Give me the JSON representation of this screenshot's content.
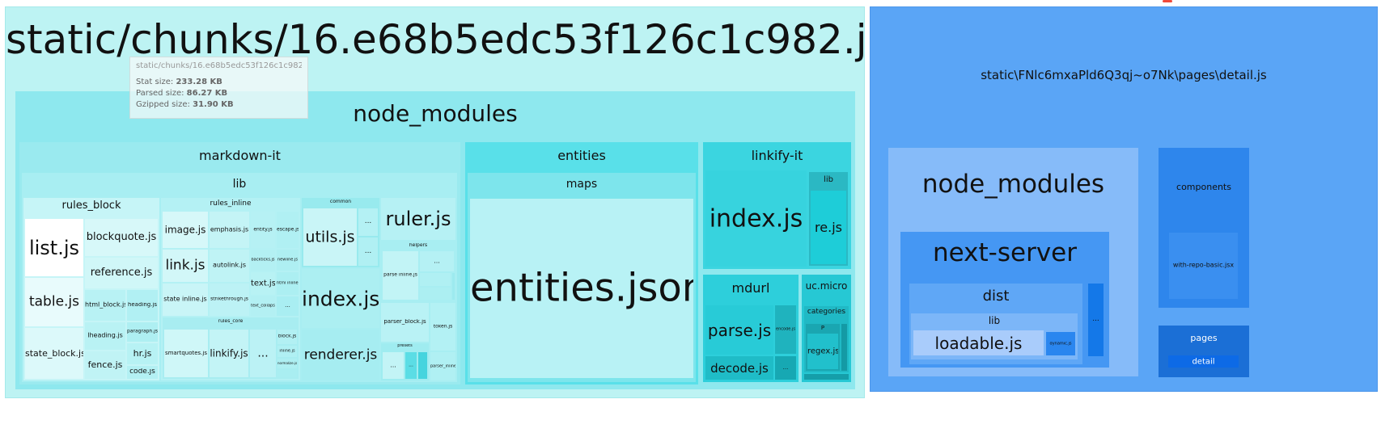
{
  "chunk_left": {
    "title": "static/chunks/16.e68b5edc53f126c1c982.js",
    "node_modules": "node_modules",
    "markdown_it": {
      "label": "markdown-it",
      "lib": "lib",
      "rules_block": {
        "label": "rules_block",
        "list": "list.js",
        "blockquote": "blockquote.js",
        "reference": "reference.js",
        "table": "table.js",
        "html_block": "html_block.js",
        "heading": "heading.js",
        "state_block": "state_block.js",
        "lheading": "lheading.js",
        "paragraph": "paragraph.js",
        "hr": "hr.js",
        "fence": "fence.js",
        "code": "code.js"
      },
      "rules_inline": {
        "label": "rules_inline",
        "image": "image.js",
        "emphasis": "emphasis.js",
        "entity": "entity.js",
        "escape": "escape.js",
        "link": "link.js",
        "autolink": "autolink.js",
        "backticks": "backticks.js",
        "newline": "newline.js",
        "state_inline": "state inline.js",
        "strikethrough": "strikethrough.js",
        "text": "text.js",
        "html_inline": "html inline.js",
        "text_collapse": "text_collapse.js",
        "rules_core": "rules_core",
        "smartquotes": "smartquotes.js",
        "linkify": "linkify.js",
        "more": "...",
        "block": "block.js",
        "inline": "inline.js",
        "normalize": "normalize.js",
        "small": "..."
      },
      "common": {
        "label": "common",
        "utils": "utils.js",
        "dots1": "...",
        "dots2": "..."
      },
      "ruler": "ruler.js",
      "helpers": {
        "label": "helpers",
        "parse_link": "parse inline.js",
        "dots": "..."
      },
      "index": "index.js",
      "parser_block": "parser_block.js",
      "token": "token.js",
      "renderer": "renderer.js",
      "presets": {
        "label": "presets",
        "dots": "...",
        "dots2": "..."
      },
      "parser_inline": "parser_inline.js"
    },
    "entities": {
      "label": "entities",
      "maps": "maps",
      "json": "entities.json"
    },
    "linkify_it": {
      "label": "linkify-it",
      "index": "index.js",
      "lib": "lib",
      "re": "re.js"
    },
    "mdurl": {
      "label": "mdurl",
      "parse": "parse.js",
      "encode": "encode.js",
      "decode": "decode.js",
      "dots": "..."
    },
    "uc_micro": {
      "label": "uc.micro",
      "categories": "categories",
      "p": "P",
      "regex": "regex.js"
    }
  },
  "tooltip": {
    "title": "static/chunks/16.e68b5edc53f126c1c982.js",
    "stat_label": "Stat size:",
    "stat_value": "233.28 KB",
    "parsed_label": "Parsed size:",
    "parsed_value": "86.27 KB",
    "gzip_label": "Gzipped size:",
    "gzip_value": "31.90 KB"
  },
  "chunk_right": {
    "title": "static\\FNlc6mxaPld6Q3qj~o7Nk\\pages\\detail.js",
    "node_modules": "node_modules",
    "next_server": "next-server",
    "dist": "dist",
    "lib": "lib",
    "loadable": "loadable.js",
    "dynamic": "dynamic.js",
    "dots": "...",
    "components": "components",
    "with_repo": "with-repo-basic.jsx",
    "pages": "pages",
    "detail": "detail"
  },
  "colors": {
    "chunk_left": "#bdf3f3",
    "node_modules_left": "#8ee8ee",
    "chunk_right": "#5aa5f6",
    "node_modules_right": "#86bbf9"
  }
}
